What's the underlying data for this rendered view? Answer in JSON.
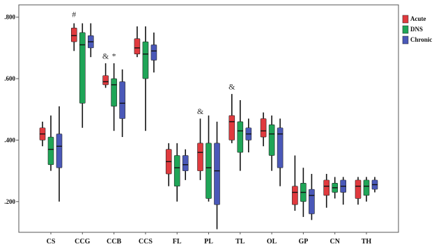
{
  "chart_data": {
    "type": "box",
    "categories": [
      "CS",
      "CCG",
      "CCB",
      "CCS",
      "FL",
      "PL",
      "TL",
      "OL",
      "GP",
      "CN",
      "TH"
    ],
    "ylim": [
      0.1,
      0.84
    ],
    "yticks": [
      0.2,
      0.4,
      0.6,
      0.8
    ],
    "ytick_labels": [
      ".200",
      ".400",
      ".600",
      ".800"
    ],
    "grid": false,
    "legend": {
      "placement": "top-right",
      "entries": [
        {
          "name": "Acute",
          "color": "#e03a3e"
        },
        {
          "name": "DNS",
          "color": "#1fa557"
        },
        {
          "name": "Chronic",
          "color": "#4a58b8"
        }
      ]
    },
    "series": [
      {
        "name": "Acute",
        "color": "#e03a3e",
        "boxes": [
          {
            "whisker_low": 0.38,
            "q1": 0.4,
            "median": 0.42,
            "q3": 0.44,
            "whisker_high": 0.46
          },
          {
            "whisker_low": 0.69,
            "q1": 0.72,
            "median": 0.74,
            "q3": 0.765,
            "whisker_high": 0.78
          },
          {
            "whisker_low": 0.57,
            "q1": 0.58,
            "median": 0.59,
            "q3": 0.61,
            "whisker_high": 0.65
          },
          {
            "whisker_low": 0.67,
            "q1": 0.68,
            "median": 0.7,
            "q3": 0.73,
            "whisker_high": 0.77
          },
          {
            "whisker_low": 0.25,
            "q1": 0.29,
            "median": 0.33,
            "q3": 0.37,
            "whisker_high": 0.39
          },
          {
            "whisker_low": 0.27,
            "q1": 0.3,
            "median": 0.36,
            "q3": 0.39,
            "whisker_high": 0.47
          },
          {
            "whisker_low": 0.39,
            "q1": 0.4,
            "median": 0.46,
            "q3": 0.48,
            "whisker_high": 0.55
          },
          {
            "whisker_low": 0.38,
            "q1": 0.41,
            "median": 0.43,
            "q3": 0.47,
            "whisker_high": 0.49
          },
          {
            "whisker_low": 0.17,
            "q1": 0.19,
            "median": 0.23,
            "q3": 0.25,
            "whisker_high": 0.35
          },
          {
            "whisker_low": 0.18,
            "q1": 0.22,
            "median": 0.25,
            "q3": 0.27,
            "whisker_high": 0.29
          },
          {
            "whisker_low": 0.19,
            "q1": 0.21,
            "median": 0.25,
            "q3": 0.27,
            "whisker_high": 0.28
          }
        ]
      },
      {
        "name": "DNS",
        "color": "#1fa557",
        "boxes": [
          {
            "whisker_low": 0.3,
            "q1": 0.32,
            "median": 0.37,
            "q3": 0.41,
            "whisker_high": 0.48
          },
          {
            "whisker_low": 0.44,
            "q1": 0.52,
            "median": 0.71,
            "q3": 0.75,
            "whisker_high": 0.78
          },
          {
            "whisker_low": 0.43,
            "q1": 0.51,
            "median": 0.58,
            "q3": 0.6,
            "whisker_high": 0.65
          },
          {
            "whisker_low": 0.43,
            "q1": 0.6,
            "median": 0.68,
            "q3": 0.72,
            "whisker_high": 0.77
          },
          {
            "whisker_low": 0.2,
            "q1": 0.25,
            "median": 0.31,
            "q3": 0.35,
            "whisker_high": 0.39
          },
          {
            "whisker_low": 0.2,
            "q1": 0.21,
            "median": 0.31,
            "q3": 0.39,
            "whisker_high": 0.48
          },
          {
            "whisker_low": 0.3,
            "q1": 0.36,
            "median": 0.43,
            "q3": 0.46,
            "whisker_high": 0.53
          },
          {
            "whisker_low": 0.3,
            "q1": 0.35,
            "median": 0.42,
            "q3": 0.45,
            "whisker_high": 0.48
          },
          {
            "whisker_low": 0.15,
            "q1": 0.2,
            "median": 0.23,
            "q3": 0.26,
            "whisker_high": 0.31
          },
          {
            "whisker_low": 0.21,
            "q1": 0.23,
            "median": 0.245,
            "q3": 0.26,
            "whisker_high": 0.28
          },
          {
            "whisker_low": 0.2,
            "q1": 0.22,
            "median": 0.25,
            "q3": 0.27,
            "whisker_high": 0.28
          }
        ]
      },
      {
        "name": "Chronic",
        "color": "#4a58b8",
        "boxes": [
          {
            "whisker_low": 0.2,
            "q1": 0.31,
            "median": 0.38,
            "q3": 0.42,
            "whisker_high": 0.51
          },
          {
            "whisker_low": 0.67,
            "q1": 0.7,
            "median": 0.72,
            "q3": 0.74,
            "whisker_high": 0.78
          },
          {
            "whisker_low": 0.41,
            "q1": 0.47,
            "median": 0.52,
            "q3": 0.59,
            "whisker_high": 0.63
          },
          {
            "whisker_low": 0.62,
            "q1": 0.66,
            "median": 0.69,
            "q3": 0.71,
            "whisker_high": 0.75
          },
          {
            "whisker_low": 0.27,
            "q1": 0.3,
            "median": 0.32,
            "q3": 0.35,
            "whisker_high": 0.37
          },
          {
            "whisker_low": 0.11,
            "q1": 0.19,
            "median": 0.3,
            "q3": 0.39,
            "whisker_high": 0.46
          },
          {
            "whisker_low": 0.36,
            "q1": 0.4,
            "median": 0.42,
            "q3": 0.44,
            "whisker_high": 0.47
          },
          {
            "whisker_low": 0.25,
            "q1": 0.31,
            "median": 0.42,
            "q3": 0.44,
            "whisker_high": 0.47
          },
          {
            "whisker_low": 0.14,
            "q1": 0.16,
            "median": 0.22,
            "q3": 0.24,
            "whisker_high": 0.29
          },
          {
            "whisker_low": 0.19,
            "q1": 0.23,
            "median": 0.25,
            "q3": 0.27,
            "whisker_high": 0.28
          },
          {
            "whisker_low": 0.23,
            "q1": 0.24,
            "median": 0.255,
            "q3": 0.27,
            "whisker_high": 0.28
          }
        ]
      }
    ],
    "annotations": [
      {
        "text": "#",
        "category": "CCG",
        "series": "Acute",
        "y": 0.8
      },
      {
        "text": "&",
        "category": "CCB",
        "series": "Acute",
        "y": 0.665
      },
      {
        "text": "*",
        "category": "CCB",
        "series": "DNS",
        "y": 0.665
      },
      {
        "text": "&",
        "category": "PL",
        "series": "Acute",
        "y": 0.485
      },
      {
        "text": "&",
        "category": "TL",
        "series": "Acute",
        "y": 0.565
      }
    ]
  }
}
